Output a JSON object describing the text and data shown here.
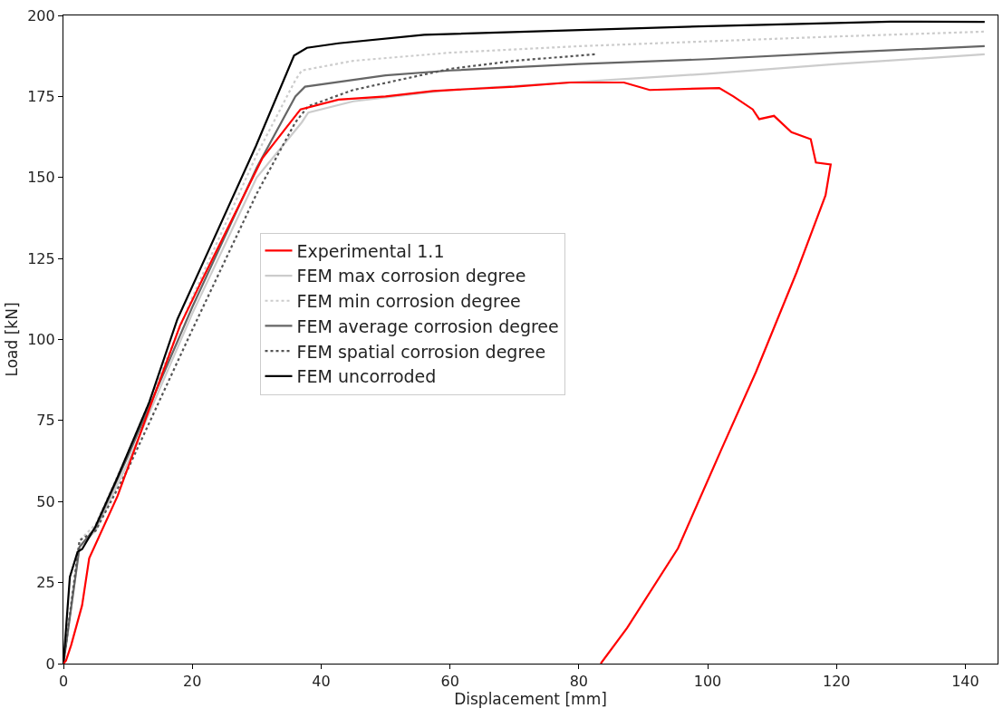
{
  "chart_data": {
    "type": "line",
    "xlabel": "Displacement [mm]",
    "ylabel": "Load [kN]",
    "xlim": [
      0,
      145
    ],
    "xticks": [
      0,
      20,
      40,
      60,
      80,
      100,
      120,
      140
    ],
    "ylim": [
      0,
      200
    ],
    "yticks": [
      0,
      25,
      50,
      75,
      100,
      125,
      150,
      175,
      200
    ],
    "legend": "center",
    "series": [
      {
        "name": "Experimental 1.1",
        "color": "#ff0000",
        "line_style": "solid",
        "x": [
          0,
          0.4,
          1.2,
          2.9,
          4,
          8.4,
          13.3,
          18.1,
          21.6,
          30.9,
          36.8,
          42.7,
          50,
          57.4,
          70,
          78.6,
          87,
          91,
          101.8,
          104,
          107,
          108,
          110.3,
          113,
          116,
          116.8,
          119.1,
          118.3,
          113.8,
          107.5,
          102.2,
          95.4,
          87.5,
          83.4
        ],
        "values": [
          0,
          0.9,
          5.7,
          18,
          32.5,
          51.7,
          78.4,
          104.3,
          118.7,
          156,
          171,
          174,
          175,
          176.7,
          178,
          179.3,
          179.3,
          177,
          177.6,
          175,
          171,
          168,
          169,
          164,
          161.8,
          154.6,
          154,
          144.5,
          120.7,
          90,
          66.4,
          35.6,
          11,
          0
        ]
      },
      {
        "name": "FEM max corrosion degree",
        "color": "#cccccc",
        "line_style": "solid",
        "x": [
          0,
          2.5,
          5,
          10,
          20,
          30,
          37,
          38,
          45,
          60,
          80,
          100,
          120,
          143
        ],
        "values": [
          0,
          36,
          41,
          62,
          108,
          150,
          167,
          170,
          173.5,
          177,
          179.5,
          182,
          185,
          188
        ]
      },
      {
        "name": "FEM min corrosion degree",
        "color": "#cccccc",
        "line_style": "dotted",
        "x": [
          0,
          2.5,
          5,
          10,
          20,
          30,
          36,
          37,
          45,
          60,
          80,
          100,
          120,
          143
        ],
        "values": [
          0,
          38,
          43,
          65,
          113,
          157,
          180,
          183,
          186,
          188.5,
          190.5,
          192,
          193.5,
          195
        ]
      },
      {
        "name": "FEM average corrosion degree",
        "color": "#666666",
        "line_style": "solid",
        "x": [
          0,
          2.5,
          5,
          10,
          20,
          30,
          36,
          37.5,
          50,
          60,
          80,
          100,
          120,
          143
        ],
        "values": [
          0,
          36,
          42,
          64,
          110,
          153,
          175,
          178,
          181.5,
          183,
          185,
          186.5,
          188.5,
          190.5
        ]
      },
      {
        "name": "FEM spatial corrosion degree",
        "color": "#555555",
        "line_style": "dotted",
        "x": [
          0,
          2.5,
          5,
          10,
          20,
          30,
          36,
          38,
          45,
          60,
          70,
          82.5
        ],
        "values": [
          0,
          38,
          41,
          60,
          103,
          145,
          167,
          172,
          177,
          183.5,
          186,
          188
        ]
      },
      {
        "name": "FEM uncorroded",
        "color": "#000000",
        "line_style": "solid",
        "x": [
          0,
          1,
          2.2,
          2.9,
          4.9,
          8.4,
          13.3,
          17.7,
          22.5,
          29.9,
          35.8,
          37.8,
          42.7,
          56,
          100.1,
          128.4,
          143
        ],
        "values": [
          0,
          26.7,
          34.5,
          35.3,
          42,
          57.5,
          80.5,
          106.3,
          127.3,
          159.8,
          187.6,
          190,
          191.4,
          194,
          196.7,
          198.1,
          198
        ]
      }
    ]
  }
}
